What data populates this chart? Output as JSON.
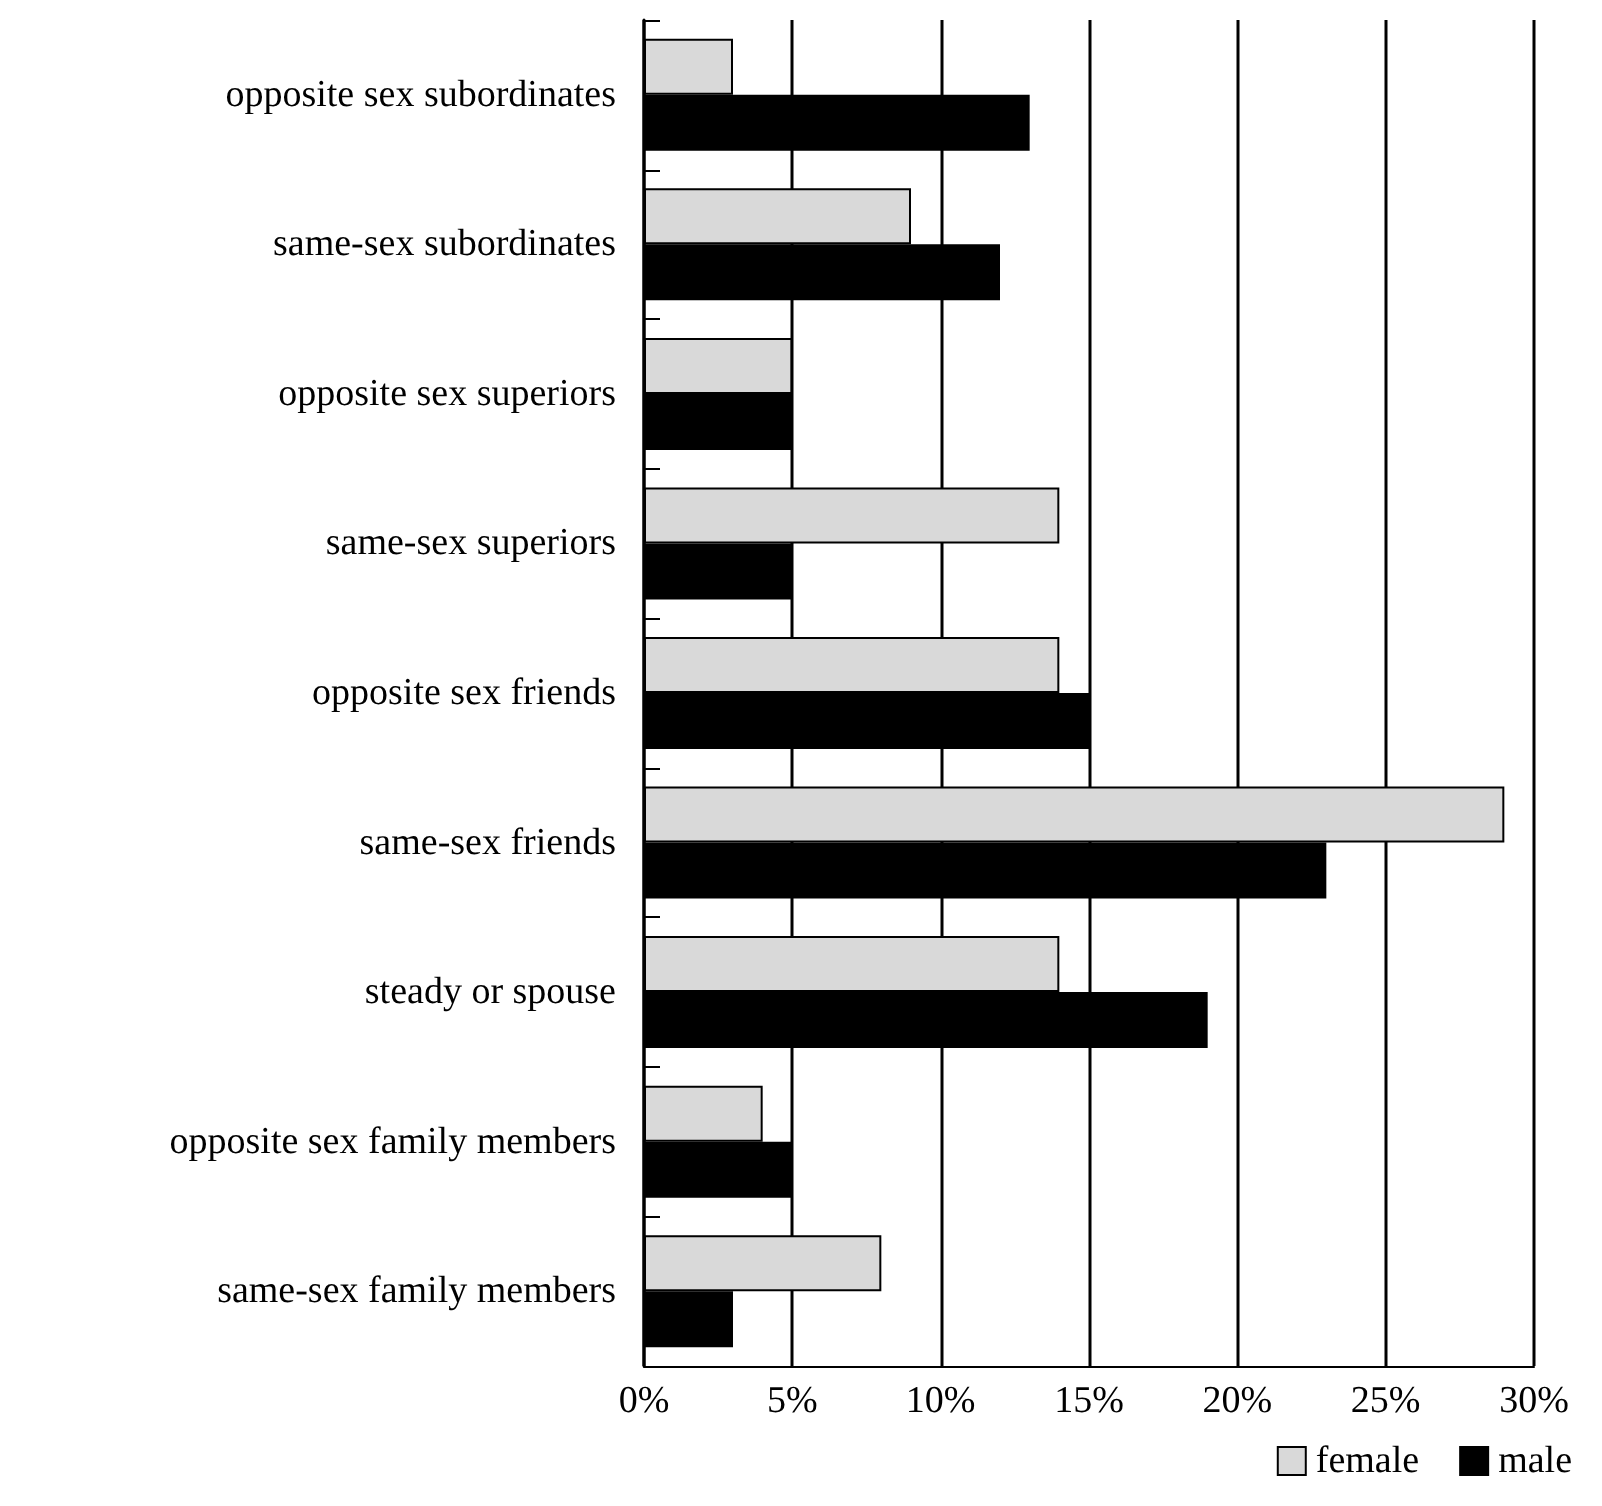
{
  "chart_data": {
    "type": "bar",
    "orientation": "horizontal",
    "categories": [
      "opposite sex subordinates",
      "same-sex subordinates",
      "opposite sex superiors",
      "same-sex superiors",
      "opposite sex friends",
      "same-sex friends",
      "steady or spouse",
      "opposite sex family members",
      "same-sex family members"
    ],
    "series": [
      {
        "name": "female",
        "color": "#d9d9d9",
        "values": [
          3,
          9,
          5,
          14,
          14,
          29,
          14,
          4,
          8
        ]
      },
      {
        "name": "male",
        "color": "#000000",
        "values": [
          13,
          12,
          5,
          5,
          15,
          23,
          19,
          5,
          3
        ]
      }
    ],
    "xlim": [
      0,
      30
    ],
    "xticks": [
      {
        "value": 0,
        "label": "0%"
      },
      {
        "value": 5,
        "label": "5%"
      },
      {
        "value": 10,
        "label": "10%"
      },
      {
        "value": 15,
        "label": "15%"
      },
      {
        "value": 20,
        "label": "20%"
      },
      {
        "value": 25,
        "label": "25%"
      },
      {
        "value": 30,
        "label": "30%"
      }
    ],
    "grid": "x",
    "legend": "bottom right"
  }
}
